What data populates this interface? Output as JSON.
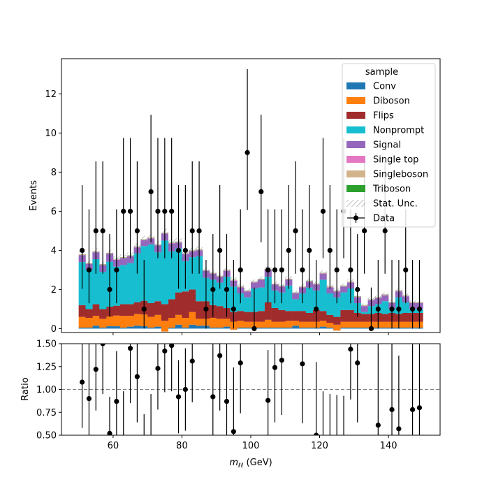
{
  "chart_data": [
    {
      "type": "bar",
      "stacked": true,
      "histogram": true,
      "ylabel": "Events",
      "xlim": [
        45,
        155
      ],
      "ylim": [
        -0.2,
        13.8
      ],
      "xticks": [
        60,
        80,
        100,
        120,
        140
      ],
      "yticks": [
        0,
        2,
        4,
        6,
        8,
        10,
        12
      ],
      "grid": false,
      "bin_edges": [
        50,
        52,
        54,
        56,
        58,
        60,
        62,
        64,
        66,
        68,
        70,
        72,
        74,
        76,
        78,
        80,
        82,
        84,
        86,
        88,
        90,
        92,
        94,
        96,
        98,
        100,
        102,
        104,
        106,
        108,
        110,
        112,
        114,
        116,
        118,
        120,
        122,
        124,
        126,
        128,
        130,
        132,
        134,
        136,
        138,
        140,
        142,
        144,
        146,
        148,
        150
      ],
      "legend": {
        "title": "sample",
        "placement": "top-right",
        "entries": [
          "Conv",
          "Diboson",
          "Flips",
          "Nonprompt",
          "Signal",
          "Single top",
          "Singleboson",
          "Triboson",
          "Stat. Unc.",
          "Data"
        ]
      },
      "colors": {
        "Conv": "#1f77b4",
        "Diboson": "#ff7f0e",
        "Flips": "#a02c2c",
        "Nonprompt": "#17becf",
        "Signal": "#9467bd",
        "Single top": "#e377c2",
        "Singleboson": "#d2b48c",
        "Triboson": "#2ca02c"
      },
      "series": [
        {
          "name": "Conv",
          "values": [
            0.05,
            0.05,
            0.15,
            0.05,
            0.12,
            0.12,
            0.05,
            0.1,
            0.15,
            0.12,
            0.05,
            0.1,
            -0.15,
            0.05,
            0.2,
            0.05,
            0.2,
            0.15,
            0.15,
            0.05,
            0.05,
            0.1,
            -0.05,
            0.05,
            0.05,
            0.05,
            0.05,
            0.05,
            0.05,
            0.05,
            0.05,
            0.15,
            0.05,
            0.05,
            0.05,
            0.1,
            0.05,
            -0.1,
            0.05,
            0.05,
            0.05,
            0.05,
            0.05,
            0.05,
            0.05,
            0.05,
            0.05,
            0.05,
            0.05,
            0.05
          ]
        },
        {
          "name": "Diboson",
          "values": [
            0.55,
            0.5,
            0.5,
            0.45,
            0.5,
            0.55,
            0.6,
            0.55,
            0.6,
            0.6,
            0.55,
            0.6,
            0.55,
            0.5,
            0.5,
            0.5,
            0.65,
            0.35,
            0.35,
            0.5,
            0.45,
            0.4,
            0.4,
            0.35,
            0.3,
            0.3,
            0.3,
            0.4,
            0.3,
            0.3,
            0.35,
            0.25,
            0.3,
            0.3,
            0.3,
            0.3,
            0.25,
            0.3,
            0.3,
            0.3,
            0.3,
            0.3,
            0.3,
            0.3,
            0.3,
            0.3,
            0.3,
            0.3,
            0.3,
            0.3
          ]
        },
        {
          "name": "Flips",
          "values": [
            0.6,
            0.45,
            0.6,
            0.5,
            0.5,
            0.5,
            0.6,
            0.6,
            0.6,
            0.7,
            0.7,
            0.7,
            0.85,
            0.95,
            1.15,
            1.35,
            1.15,
            0.9,
            0.9,
            0.65,
            0.65,
            0.55,
            0.5,
            0.5,
            0.5,
            0.5,
            0.55,
            0.9,
            0.7,
            0.6,
            0.5,
            0.5,
            0.55,
            0.45,
            0.6,
            0.5,
            0.4,
            0.4,
            0.6,
            0.6,
            0.45,
            0.4,
            0.4,
            0.45,
            0.4,
            0.45,
            0.4,
            0.45,
            0.45,
            0.45
          ]
        },
        {
          "name": "Nonprompt",
          "values": [
            2.2,
            2.0,
            2.3,
            1.9,
            2.3,
            2.0,
            2.0,
            2.1,
            2.5,
            2.8,
            3.0,
            2.5,
            3.25,
            2.45,
            2.25,
            1.55,
            1.65,
            2.3,
            1.2,
            1.3,
            1.2,
            1.6,
            1.3,
            0.9,
            0.75,
            1.2,
            1.2,
            1.3,
            0.9,
            0.9,
            1.3,
            0.6,
            0.9,
            1.3,
            1.0,
            1.6,
            1.1,
            1.0,
            0.9,
            1.1,
            0.5,
            0.1,
            0.4,
            0.45,
            0.65,
            0.2,
            0.85,
            0.55,
            0.2,
            0.2
          ]
        },
        {
          "name": "Signal",
          "values": [
            0.35,
            0.3,
            0.35,
            0.35,
            0.4,
            0.35,
            0.35,
            0.35,
            0.3,
            0.3,
            0.3,
            0.35,
            0.35,
            0.4,
            0.3,
            0.35,
            0.3,
            0.3,
            0.35,
            0.3,
            0.3,
            0.3,
            0.3,
            0.3,
            0.3,
            0.3,
            0.4,
            0.35,
            0.3,
            0.3,
            0.3,
            0.3,
            0.3,
            0.3,
            0.3,
            0.3,
            0.3,
            0.3,
            0.3,
            0.3,
            0.3,
            0.3,
            0.3,
            0.3,
            0.3,
            0.3,
            0.3,
            0.3,
            0.3,
            0.3
          ]
        },
        {
          "name": "Single top",
          "values": [
            0.02,
            0.02,
            0.02,
            0.02,
            0.02,
            0.02,
            0.02,
            0.02,
            0.02,
            0.02,
            0.02,
            0.02,
            0.02,
            0.02,
            0.02,
            0.02,
            0.02,
            0.02,
            0.02,
            0.02,
            0.02,
            0.02,
            0.02,
            0.02,
            0.02,
            0.02,
            0.02,
            0.02,
            0.02,
            0.02,
            0.02,
            0.02,
            0.02,
            0.02,
            0.02,
            0.02,
            0.02,
            0.02,
            0.02,
            0.02,
            0.02,
            0.02,
            0.02,
            0.02,
            0.02,
            0.02,
            0.02,
            0.02,
            0.02,
            0.02
          ]
        },
        {
          "name": "Singleboson",
          "values": [
            0.02,
            0.02,
            0.02,
            0.02,
            0.02,
            0.02,
            0.02,
            0.02,
            0.02,
            0.02,
            0.02,
            0.02,
            0.02,
            0.02,
            0.02,
            0.02,
            0.02,
            0.02,
            0.02,
            0.02,
            0.02,
            0.02,
            0.02,
            0.02,
            0.02,
            0.02,
            0.02,
            0.02,
            0.02,
            0.02,
            0.02,
            0.02,
            0.02,
            0.02,
            0.02,
            0.02,
            0.02,
            0.02,
            0.02,
            0.02,
            0.02,
            0.02,
            0.02,
            0.02,
            0.02,
            0.02,
            0.02,
            0.02,
            0.02,
            0.02
          ]
        },
        {
          "name": "Triboson",
          "values": [
            0.01,
            0.01,
            0.01,
            0.01,
            0.01,
            0.01,
            0.01,
            0.01,
            0.01,
            0.01,
            0.01,
            0.01,
            0.01,
            0.01,
            0.01,
            0.01,
            0.01,
            0.01,
            0.01,
            0.01,
            0.01,
            0.01,
            0.01,
            0.01,
            0.01,
            0.01,
            0.01,
            0.01,
            0.01,
            0.01,
            0.01,
            0.01,
            0.01,
            0.01,
            0.01,
            0.01,
            0.01,
            0.01,
            0.01,
            0.01,
            0.01,
            0.01,
            0.01,
            0.01,
            0.01,
            0.01,
            0.01,
            0.01,
            0.01,
            0.01
          ]
        }
      ],
      "stat_unc": [
        0.15,
        0.12,
        0.15,
        0.12,
        0.15,
        0.13,
        0.14,
        0.14,
        0.16,
        0.17,
        0.18,
        0.16,
        0.2,
        0.17,
        0.17,
        0.16,
        0.16,
        0.16,
        0.13,
        0.13,
        0.12,
        0.13,
        0.12,
        0.11,
        0.1,
        0.11,
        0.12,
        0.13,
        0.11,
        0.11,
        0.12,
        0.1,
        0.11,
        0.12,
        0.11,
        0.13,
        0.11,
        0.11,
        0.11,
        0.11,
        0.09,
        0.08,
        0.09,
        0.09,
        0.1,
        0.09,
        0.1,
        0.09,
        0.08,
        0.08
      ],
      "data": {
        "name": "Data",
        "x": [
          51,
          53,
          55,
          57,
          59,
          61,
          63,
          65,
          67,
          69,
          71,
          73,
          75,
          77,
          79,
          81,
          83,
          85,
          87,
          89,
          91,
          93,
          95,
          97,
          99,
          101,
          103,
          105,
          107,
          109,
          111,
          113,
          115,
          117,
          119,
          121,
          123,
          125,
          127,
          129,
          131,
          133,
          135,
          137,
          139,
          141,
          143,
          145,
          147,
          149
        ],
        "y": [
          4,
          3,
          5,
          5,
          2,
          3,
          6,
          6,
          5,
          1,
          7,
          6,
          6,
          6,
          4,
          4,
          5,
          5,
          1,
          2,
          4,
          2,
          1,
          3,
          9,
          0,
          7,
          3,
          3,
          3,
          4,
          5,
          3,
          4,
          1,
          6,
          4,
          3,
          6,
          3,
          2,
          5,
          0,
          1,
          5,
          1,
          1,
          3,
          1,
          1
        ]
      }
    },
    {
      "type": "scatter",
      "ylabel": "Ratio",
      "xlabel": "m_{\\ell\\ell} (GeV)",
      "xlabel_main": "m",
      "xlabel_sub": "ℓℓ",
      "xlabel_unit": " (GeV)",
      "xlim": [
        45,
        155
      ],
      "ylim": [
        0.5,
        1.5
      ],
      "xticks": [
        60,
        80,
        100,
        120,
        140
      ],
      "xtick_labels": [
        "60",
        "80",
        "100",
        "120",
        "140"
      ],
      "yticks": [
        0.5,
        0.75,
        1.0,
        1.25,
        1.5
      ],
      "ytick_labels": [
        "0.50",
        "0.75",
        "1.00",
        "1.25",
        "1.50"
      ],
      "reference_line": 1.0,
      "points": {
        "x": [
          51,
          53,
          55,
          57,
          59,
          61,
          65,
          67,
          73,
          75,
          77,
          79,
          81,
          83,
          89,
          91,
          93,
          95,
          97,
          105,
          107,
          109,
          115,
          119,
          129,
          131,
          137,
          141,
          143,
          147,
          149
        ],
        "y": [
          1.08,
          0.9,
          1.22,
          1.5,
          0.52,
          0.87,
          1.45,
          1.14,
          1.23,
          1.42,
          1.48,
          0.92,
          1.0,
          1.31,
          0.92,
          1.37,
          0.87,
          0.54,
          1.29,
          0.88,
          1.24,
          1.32,
          1.28,
          0.5,
          1.44,
          1.29,
          0.61,
          0.78,
          0.57,
          0.78,
          0.8
        ],
        "err": [
          0.5,
          0.6,
          0.45,
          0.55,
          0.4,
          0.55,
          0.6,
          0.5,
          0.45,
          0.45,
          0.5,
          0.4,
          0.45,
          0.45,
          0.7,
          0.6,
          0.65,
          0.7,
          0.55,
          0.55,
          0.6,
          0.6,
          0.65,
          0.8,
          0.55,
          0.65,
          0.9,
          0.8,
          0.8,
          0.8,
          0.8
        ]
      },
      "ratio_lower_stubs": {
        "x": [
          63,
          69,
          71,
          121,
          123,
          125,
          127
        ],
        "y_top": [
          0.98,
          0.73,
          0.95,
          0.98,
          0.95,
          0.94,
          0.93
        ]
      }
    }
  ]
}
